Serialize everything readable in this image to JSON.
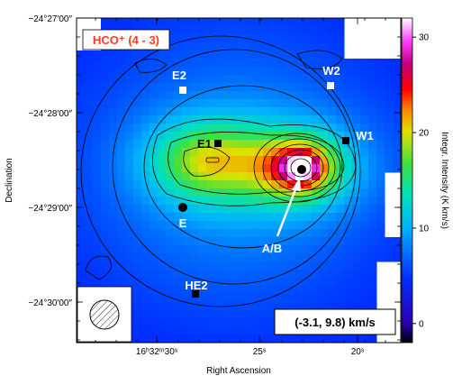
{
  "chart_data": {
    "type": "heatmap",
    "title": "HCO⁺ (4 - 3)",
    "velocity_label": "(-3.1, 9.8) km/s",
    "xlabel": "Right Ascension",
    "ylabel": "Declination",
    "colorbar_label": "Integr. Intensity (K km/s)",
    "x_ticks": [
      "16ʰ32ᵐ30ˢ",
      "25ˢ",
      "20ˢ"
    ],
    "y_ticks": [
      "−24°27′00″",
      "−24°28′00″",
      "−24°29′00″",
      "−24°30′00″"
    ],
    "colorbar_ticks": [
      0,
      10,
      20,
      30
    ],
    "colorbar_range": [
      -2,
      32
    ],
    "sources": [
      {
        "name": "E2",
        "marker": "square"
      },
      {
        "name": "W2",
        "marker": "square"
      },
      {
        "name": "E1",
        "marker": "square"
      },
      {
        "name": "W1",
        "marker": "square"
      },
      {
        "name": "E",
        "marker": "circle"
      },
      {
        "name": "HE2",
        "marker": "square"
      },
      {
        "name": "A/B",
        "marker": "circle"
      }
    ],
    "colors": {
      "title": "#ff3b1f",
      "background_emission": "#1a2fd8",
      "peak_emission": "#c8005a"
    }
  }
}
